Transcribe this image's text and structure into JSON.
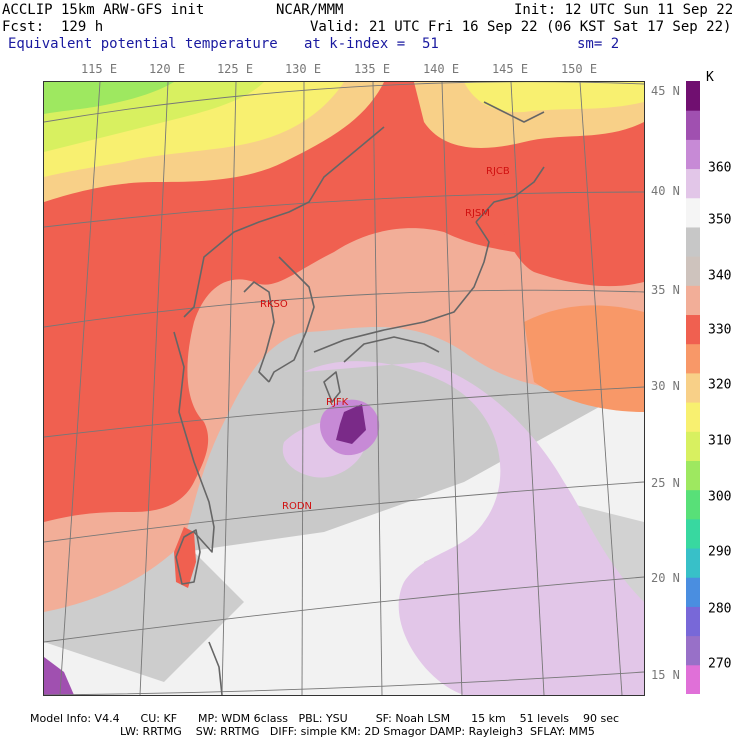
{
  "header": {
    "model": "ACCLIP 15km ARW-GFS init",
    "org": "NCAR/MMM",
    "init": "Init: 12 UTC Sun 11 Sep 22",
    "fcst": "Fcst:  129 h",
    "valid": "Valid: 21 UTC Fri 16 Sep 22 (06 KST Sat 17 Sep 22)",
    "field": "Equivalent potential temperature",
    "level": "at k-index =  51",
    "smooth": "sm= 2"
  },
  "axes": {
    "lon_labels": [
      "115 E",
      "120 E",
      "125 E",
      "130 E",
      "135 E",
      "140 E",
      "145 E",
      "150 E"
    ],
    "lat_labels": [
      "45 N",
      "40 N",
      "35 N",
      "30 N",
      "25 N",
      "20 N",
      "15 N"
    ]
  },
  "stations": [
    "RJCB",
    "RJSM",
    "RKSO",
    "RJFK",
    "RODN"
  ],
  "colorbar": {
    "unit": "K",
    "ticks": [
      "360",
      "350",
      "340",
      "330",
      "320",
      "310",
      "300",
      "290",
      "280",
      "270"
    ],
    "colors": [
      "#e070d8",
      "#9870c8",
      "#7868d8",
      "#4a8ee0",
      "#38c0c8",
      "#38d8a0",
      "#58e078",
      "#9ee860",
      "#d8f060",
      "#f8f070",
      "#f8d088",
      "#f89868",
      "#f06050",
      "#f2ae98",
      "#cec3bd",
      "#c7c7c7",
      "#f5f5f5",
      "#e2c6e8",
      "#c78ad6",
      "#a050b0",
      "#700f70"
    ]
  },
  "footer": {
    "line1": "Model Info: V4.4      CU: KF      MP: WDM 6class   PBL: YSU        SF: Noah LSM      15 km    51 levels    90 sec",
    "line2": "LW: RRTMG    SW: RRTMG   DIFF: simple KM: 2D Smagor DAMP: Rayleigh3  SFLAY: MM5"
  }
}
